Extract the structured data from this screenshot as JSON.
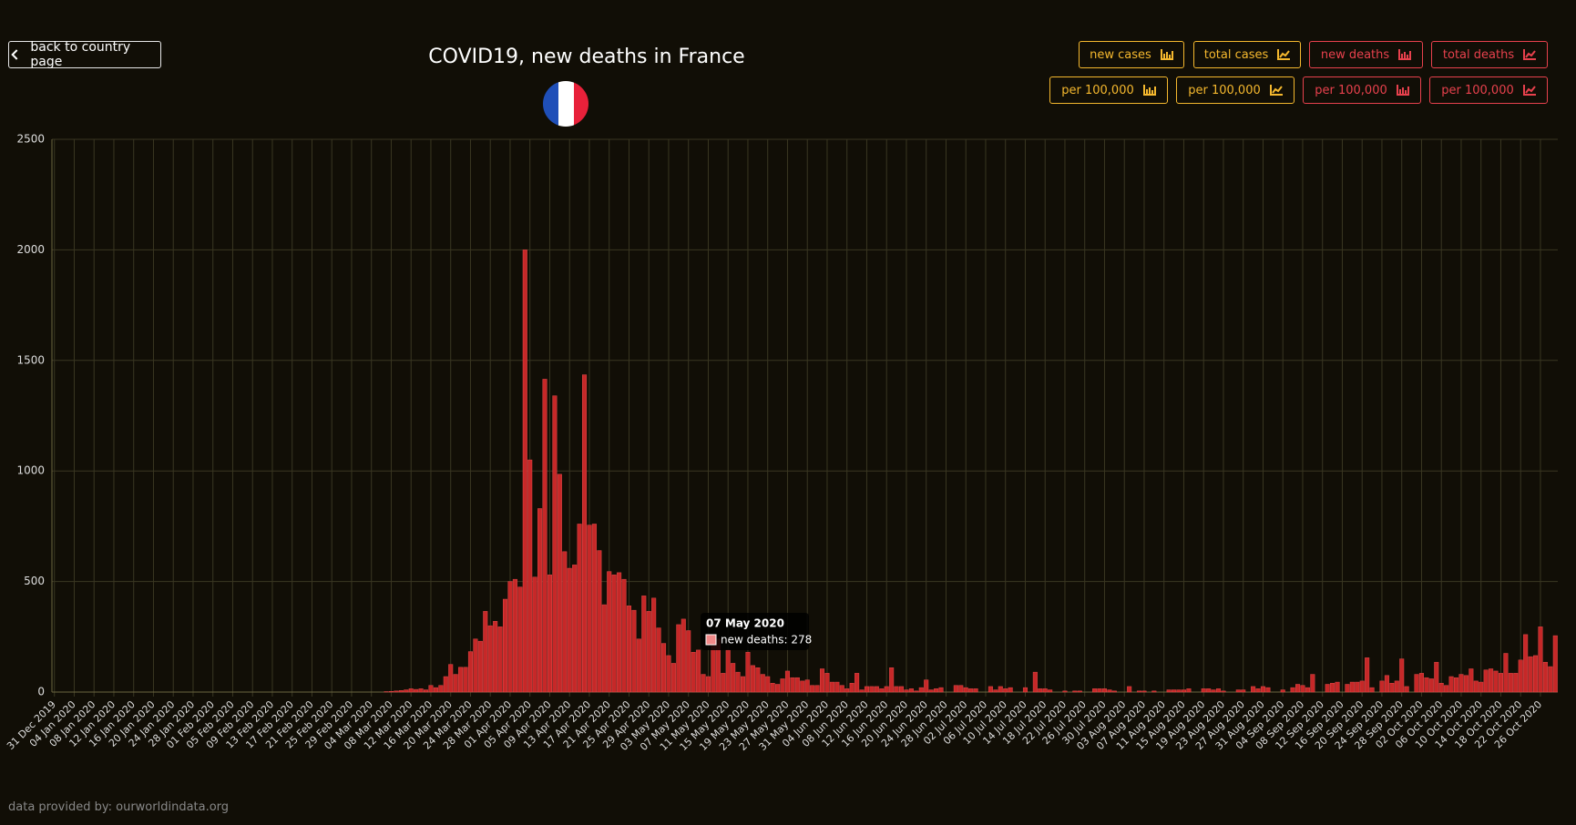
{
  "nav": {
    "back": "back to country page"
  },
  "buttons": [
    {
      "label": "new cases",
      "per": "per 100,000"
    },
    {
      "label": "total cases",
      "per": "per 100,000"
    },
    {
      "label": "new deaths",
      "per": "per 100,000"
    },
    {
      "label": "total deaths",
      "per": "per 100,000"
    }
  ],
  "footer": "data provided by: ourworldindata.org",
  "chart_data": {
    "type": "bar",
    "title": "COVID19, new deaths in France",
    "series": [
      {
        "name": "new deaths",
        "color": "#c62828",
        "values": [
          0,
          0,
          0,
          0,
          0,
          0,
          0,
          0,
          0,
          0,
          0,
          0,
          0,
          0,
          0,
          0,
          0,
          0,
          0,
          0,
          0,
          0,
          0,
          0,
          0,
          0,
          0,
          0,
          0,
          0,
          0,
          0,
          0,
          0,
          0,
          0,
          0,
          0,
          0,
          0,
          0,
          0,
          0,
          0,
          0,
          0,
          0,
          0,
          0,
          0,
          0,
          0,
          0,
          0,
          0,
          0,
          0,
          0,
          0,
          0,
          0,
          0,
          0,
          0,
          0,
          0,
          0,
          2,
          3,
          5,
          7,
          10,
          15,
          12,
          15,
          10,
          30,
          20,
          30,
          70,
          125,
          80,
          112,
          112,
          183,
          240,
          230,
          365,
          300,
          320,
          295,
          420,
          500,
          510,
          475,
          2000,
          1050,
          520,
          830,
          1415,
          530,
          1340,
          985,
          635,
          560,
          575,
          760,
          1435,
          755,
          760,
          640,
          395,
          545,
          530,
          540,
          510,
          390,
          370,
          240,
          435,
          365,
          425,
          290,
          220,
          165,
          130,
          305,
          330,
          278,
          180,
          190,
          80,
          70,
          250,
          240,
          85,
          190,
          130,
          90,
          70,
          180,
          120,
          110,
          80,
          70,
          40,
          35,
          60,
          95,
          65,
          65,
          50,
          55,
          30,
          30,
          105,
          85,
          45,
          45,
          30,
          15,
          40,
          85,
          10,
          25,
          25,
          25,
          15,
          25,
          110,
          25,
          25,
          10,
          15,
          5,
          20,
          55,
          10,
          15,
          20,
          0,
          0,
          30,
          30,
          20,
          15,
          15,
          0,
          0,
          25,
          10,
          25,
          15,
          20,
          0,
          0,
          20,
          0,
          90,
          15,
          15,
          10,
          0,
          0,
          5,
          0,
          5,
          5,
          0,
          0,
          15,
          15,
          15,
          10,
          5,
          0,
          0,
          25,
          0,
          5,
          5,
          0,
          5,
          0,
          0,
          10,
          10,
          10,
          10,
          15,
          0,
          0,
          15,
          15,
          10,
          15,
          5,
          0,
          0,
          10,
          10,
          0,
          25,
          15,
          25,
          20,
          0,
          0,
          10,
          0,
          20,
          35,
          30,
          20,
          80,
          0,
          0,
          35,
          40,
          45,
          0,
          35,
          45,
          45,
          50,
          155,
          20,
          0,
          50,
          75,
          40,
          50,
          150,
          25,
          0,
          80,
          85,
          65,
          60,
          135,
          40,
          30,
          70,
          65,
          80,
          75,
          105,
          50,
          45,
          100,
          105,
          95,
          85,
          175,
          85,
          85,
          145,
          260,
          160,
          165,
          295,
          135,
          115,
          255
        ]
      }
    ],
    "categories": [
      "31 Dec 2019",
      null,
      null,
      null,
      "04 Jan 2020",
      null,
      null,
      null,
      "08 Jan 2020",
      null,
      null,
      null,
      "12 Jan 2020",
      null,
      null,
      null,
      "16 Jan 2020",
      null,
      null,
      null,
      "20 Jan 2020",
      null,
      null,
      null,
      "24 Jan 2020",
      null,
      null,
      null,
      "28 Jan 2020",
      null,
      null,
      null,
      "01 Feb 2020",
      null,
      null,
      null,
      "05 Feb 2020",
      null,
      null,
      null,
      "09 Feb 2020",
      null,
      null,
      null,
      "13 Feb 2020",
      null,
      null,
      null,
      "17 Feb 2020",
      null,
      null,
      null,
      "21 Feb 2020",
      null,
      null,
      null,
      "25 Feb 2020",
      null,
      null,
      null,
      "29 Feb 2020",
      null,
      null,
      null,
      "04 Mar 2020",
      null,
      null,
      null,
      "08 Mar 2020",
      null,
      null,
      null,
      "12 Mar 2020",
      null,
      null,
      null,
      "16 Mar 2020",
      null,
      null,
      null,
      "20 Mar 2020",
      null,
      null,
      null,
      "24 Mar 2020",
      null,
      null,
      null,
      "28 Mar 2020",
      null,
      null,
      null,
      "01 Apr 2020",
      null,
      null,
      null,
      "05 Apr 2020",
      null,
      null,
      null,
      "09 Apr 2020",
      null,
      null,
      null,
      "13 Apr 2020",
      null,
      null,
      null,
      "17 Apr 2020",
      null,
      null,
      null,
      "21 Apr 2020",
      null,
      null,
      null,
      "25 Apr 2020",
      null,
      null,
      null,
      "29 Apr 2020",
      null,
      null,
      null,
      "03 May 2020",
      null,
      null,
      null,
      "07 May 2020",
      null,
      null,
      null,
      "11 May 2020",
      null,
      null,
      null,
      "15 May 2020",
      null,
      null,
      null,
      "19 May 2020",
      null,
      null,
      null,
      "23 May 2020",
      null,
      null,
      null,
      "27 May 2020",
      null,
      null,
      null,
      "31 May 2020",
      null,
      null,
      null,
      "04 Jun 2020",
      null,
      null,
      null,
      "08 Jun 2020",
      null,
      null,
      null,
      "12 Jun 2020",
      null,
      null,
      null,
      "16 Jun 2020",
      null,
      null,
      null,
      "20 Jun 2020",
      null,
      null,
      null,
      "24 Jun 2020",
      null,
      null,
      null,
      "28 Jun 2020",
      null,
      null,
      null,
      "02 Jul 2020",
      null,
      null,
      null,
      "06 Jul 2020",
      null,
      null,
      null,
      "10 Jul 2020",
      null,
      null,
      null,
      "14 Jul 2020",
      null,
      null,
      null,
      "18 Jul 2020",
      null,
      null,
      null,
      "22 Jul 2020",
      null,
      null,
      null,
      "26 Jul 2020",
      null,
      null,
      null,
      "30 Jul 2020",
      null,
      null,
      null,
      "03 Aug 2020",
      null,
      null,
      null,
      "07 Aug 2020",
      null,
      null,
      null,
      "11 Aug 2020",
      null,
      null,
      null,
      "15 Aug 2020",
      null,
      null,
      null,
      "19 Aug 2020",
      null,
      null,
      null,
      "23 Aug 2020",
      null,
      null,
      null,
      "27 Aug 2020",
      null,
      null,
      null,
      "31 Aug 2020",
      null,
      null,
      null,
      "04 Sep 2020",
      null,
      null,
      null,
      "08 Sep 2020",
      null,
      null,
      null,
      "12 Sep 2020",
      null,
      null,
      null,
      "16 Sep 2020",
      null,
      null,
      null,
      "20 Sep 2020",
      null,
      null,
      null,
      "24 Sep 2020",
      null,
      null,
      null,
      "28 Sep 2020",
      null,
      null,
      null,
      "02 Oct 2020",
      null,
      null,
      null,
      "06 Oct 2020",
      null,
      null,
      null,
      "10 Oct 2020",
      null,
      null,
      null,
      "14 Oct 2020",
      null,
      null,
      null,
      "18 Oct 2020",
      null,
      null,
      null,
      "22 Oct 2020",
      null,
      null,
      null,
      "26 Oct 2020",
      null,
      null,
      null
    ],
    "ylim": [
      0,
      2500
    ],
    "yticks": [
      0,
      500,
      1000,
      1500,
      2000,
      2500
    ],
    "grid": true,
    "tooltip": {
      "title": "07 May 2020",
      "text": "new deaths: 278"
    }
  }
}
